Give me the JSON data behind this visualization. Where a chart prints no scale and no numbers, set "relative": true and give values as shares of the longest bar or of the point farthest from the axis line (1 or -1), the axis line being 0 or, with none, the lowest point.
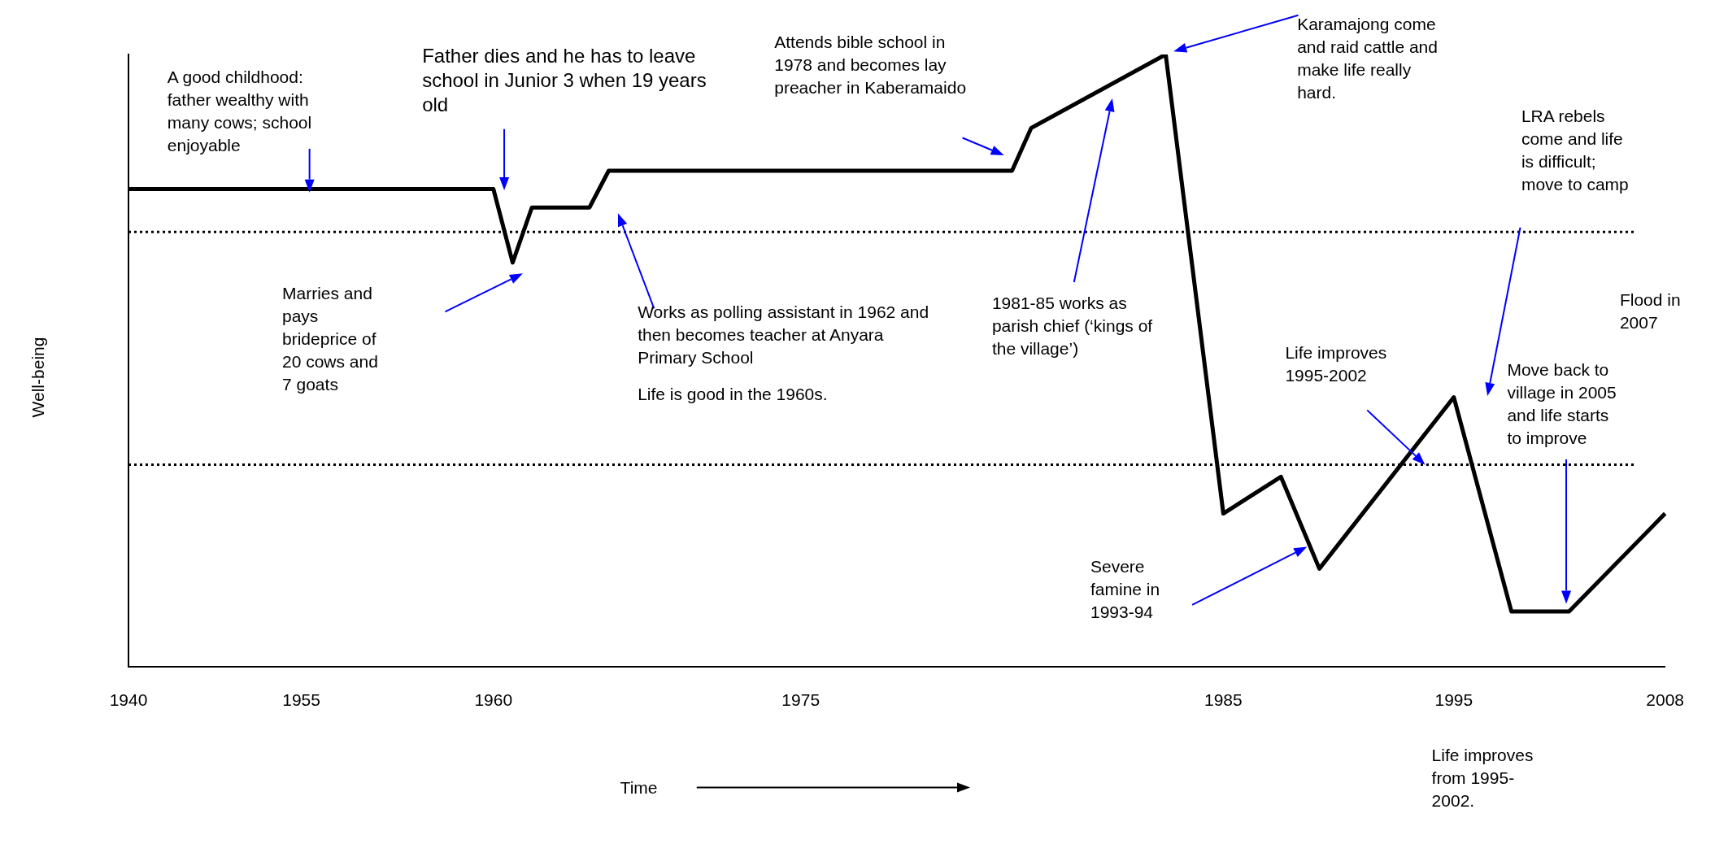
{
  "chart_data": {
    "type": "line",
    "xlabel": "Time",
    "ylabel": "Well-being",
    "relative": true,
    "legend": false,
    "grid": false,
    "marker": "none",
    "line_style": "solid",
    "categories": [
      "1940",
      null,
      null,
      null,
      null,
      null,
      null,
      null,
      null,
      "1955",
      null,
      null,
      null,
      null,
      null,
      null,
      null,
      null,
      null,
      "1960",
      null,
      null,
      null,
      null,
      null,
      null,
      null,
      null,
      null,
      null,
      null,
      null,
      null,
      null,
      null,
      "1975",
      null,
      null,
      null,
      null,
      null,
      null,
      null,
      null,
      null,
      null,
      null,
      null,
      null,
      null,
      null,
      null,
      null,
      null,
      null,
      null,
      null,
      "1985",
      null,
      null,
      null,
      null,
      null,
      null,
      null,
      null,
      null,
      null,
      null,
      "1995",
      null,
      null,
      null,
      null,
      null,
      null,
      null,
      null,
      null,
      null,
      "2008"
    ],
    "series": [
      {
        "color": "#000000",
        "values": [
          0.78,
          null,
          null,
          null,
          null,
          null,
          null,
          null,
          null,
          null,
          null,
          null,
          null,
          null,
          null,
          null,
          null,
          null,
          null,
          0.78,
          0.66,
          0.75,
          null,
          null,
          0.75,
          0.81,
          null,
          null,
          null,
          null,
          null,
          null,
          null,
          null,
          null,
          null,
          null,
          null,
          null,
          null,
          null,
          null,
          null,
          null,
          null,
          null,
          0.81,
          0.88,
          null,
          null,
          null,
          null,
          null,
          null,
          1.0,
          null,
          null,
          0.25,
          null,
          null,
          0.31,
          null,
          0.16,
          null,
          null,
          null,
          null,
          null,
          null,
          0.44,
          null,
          null,
          0.09,
          null,
          null,
          0.09,
          null,
          null,
          null,
          null,
          0.25
        ]
      }
    ],
    "ref_lines": [
      {
        "axis": "y",
        "value": 0.71,
        "color": "#000000",
        "line_style": "dotted"
      },
      {
        "axis": "y",
        "value": 0.33,
        "color": "#000000",
        "line_style": "dotted"
      }
    ],
    "annotations": [
      "A good childhood: father wealthy with many cows; school enjoyable",
      "Father dies and he has to leave school in Junior 3 when 19 years old",
      "Attends bible school in 1978 and becomes lay preacher in Kaberamaido",
      "Karamajong come and raid cattle and make life really hard.",
      "LRA rebels come and life is difficult; move to camp",
      "Marries and pays brideprice of 20 cows and 7 goats",
      "Works as polling assistant in 1962 and then becomes teacher at Anyara Primary School",
      "Life is good in the 1960s.",
      "1981-85 works as parish chief (‘kings of the village’)",
      "Flood in 2007",
      "Life improves 1995-2002",
      "Move back to village in 2005 and life starts to improve",
      "Severe famine in 1993-94",
      "Life improves from 1995-2002."
    ]
  }
}
